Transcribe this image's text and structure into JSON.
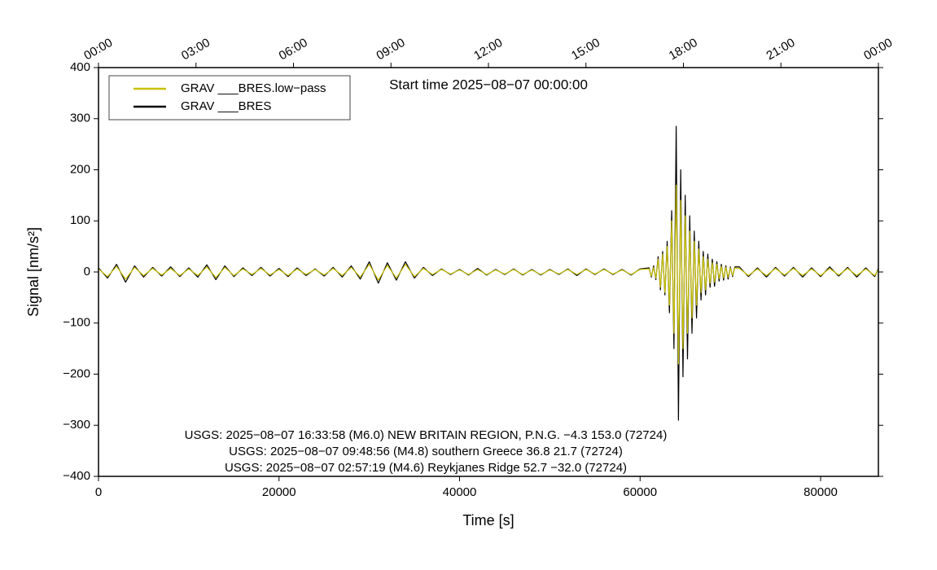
{
  "chart_data": {
    "type": "line",
    "title": "Start time 2025−08−07 00:00:00",
    "xlabel": "Time [s]",
    "ylabel": "Signal [nm/s²]",
    "xlim": [
      0,
      86400
    ],
    "ylim": [
      -400,
      400
    ],
    "xticks": [
      0,
      20000,
      40000,
      60000,
      80000
    ],
    "yticks": [
      {
        "value": -400,
        "label": "−400"
      },
      {
        "value": -300,
        "label": "−300"
      },
      {
        "value": -200,
        "label": "−200"
      },
      {
        "value": -100,
        "label": "−100"
      },
      0,
      100,
      200,
      300,
      400
    ],
    "x2ticks": [
      {
        "value": 0,
        "label": "00:00"
      },
      {
        "value": 10800,
        "label": "03:00"
      },
      {
        "value": 21600,
        "label": "06:00"
      },
      {
        "value": 32400,
        "label": "09:00"
      },
      {
        "value": 43200,
        "label": "12:00"
      },
      {
        "value": 54000,
        "label": "15:00"
      },
      {
        "value": 64800,
        "label": "18:00"
      },
      {
        "value": 75600,
        "label": "21:00"
      },
      {
        "value": 86400,
        "label": "00:00"
      }
    ],
    "legend": "upper left",
    "annotations": [
      "USGS: 2025−08−07 16:33:58 (M6.0) NEW BRITAIN REGION, P.N.G. −4.3 153.0 (72724)",
      "USGS: 2025−08−07 09:48:56 (M4.8) southern Greece 36.8 21.7 (72724)",
      "USGS: 2025−08−07 02:57:19 (M4.6) Reykjanes Ridge 52.7 −32.0 (72724)"
    ],
    "x": [
      0,
      1000,
      2000,
      3000,
      4000,
      5000,
      6000,
      7000,
      8000,
      9000,
      10000,
      11000,
      12000,
      13000,
      14000,
      15000,
      16000,
      17000,
      18000,
      19000,
      20000,
      21000,
      22000,
      23000,
      24000,
      25000,
      26000,
      27000,
      28000,
      29000,
      30000,
      31000,
      32000,
      33000,
      34000,
      35000,
      36000,
      37000,
      38000,
      39000,
      40000,
      41000,
      42000,
      43000,
      44000,
      45000,
      46000,
      47000,
      48000,
      49000,
      50000,
      51000,
      52000,
      53000,
      54000,
      55000,
      56000,
      57000,
      58000,
      59000,
      60000,
      61000,
      61250,
      61500,
      61750,
      62000,
      62250,
      62500,
      62750,
      63000,
      63250,
      63500,
      63750,
      64000,
      64250,
      64500,
      64750,
      65000,
      65250,
      65500,
      65750,
      66000,
      66250,
      66500,
      66750,
      67000,
      67250,
      67500,
      67750,
      68000,
      68250,
      68500,
      68750,
      69000,
      69250,
      69500,
      69750,
      70000,
      70250,
      70500,
      71000,
      72000,
      73000,
      74000,
      75000,
      76000,
      77000,
      78000,
      79000,
      80000,
      81000,
      82000,
      83000,
      84000,
      85000,
      86000,
      86400
    ],
    "series": [
      {
        "name": "GRAV ___BRES.low−pass",
        "color": "#c8c000",
        "values": [
          6,
          -9,
          11,
          -14,
          9,
          -7,
          7,
          -6,
          7,
          -7,
          6,
          -7,
          10,
          -11,
          9,
          -7,
          6,
          -5,
          7,
          -6,
          5,
          -7,
          6,
          -5,
          5,
          -6,
          7,
          -7,
          9,
          -10,
          15,
          -16,
          13,
          -12,
          15,
          -9,
          7,
          -5,
          5,
          -4,
          4,
          -5,
          5,
          -5,
          4,
          -4,
          5,
          -5,
          4,
          -5,
          4,
          -4,
          5,
          -5,
          5,
          -4,
          5,
          -4,
          4,
          -5,
          5,
          6,
          -8,
          9,
          -12,
          25,
          -30,
          35,
          -40,
          50,
          -65,
          100,
          -120,
          170,
          -180,
          140,
          -150,
          110,
          -120,
          80,
          -90,
          60,
          -65,
          45,
          -40,
          30,
          -35,
          25,
          -22,
          18,
          -20,
          15,
          -13,
          11,
          -12,
          9,
          -10,
          8,
          -7,
          8,
          7,
          -7,
          6,
          -7,
          7,
          -6,
          7,
          -7,
          6,
          -7,
          7,
          -6,
          7,
          -7,
          6,
          -7,
          5
        ]
      },
      {
        "name": "GRAV ___BRES",
        "color": "#000000",
        "values": [
          8,
          -12,
          15,
          -20,
          12,
          -10,
          9,
          -8,
          10,
          -9,
          8,
          -10,
          14,
          -15,
          12,
          -9,
          8,
          -7,
          9,
          -8,
          7,
          -9,
          8,
          -7,
          6,
          -8,
          9,
          -10,
          12,
          -14,
          20,
          -22,
          18,
          -16,
          20,
          -12,
          9,
          -7,
          6,
          -5,
          5,
          -6,
          7,
          -6,
          5,
          -5,
          6,
          -6,
          5,
          -6,
          5,
          -5,
          6,
          -7,
          6,
          -5,
          6,
          -5,
          5,
          -6,
          6,
          8,
          -10,
          12,
          -15,
          30,
          -35,
          40,
          -45,
          60,
          -80,
          120,
          -150,
          285,
          -290,
          200,
          -205,
          150,
          -170,
          110,
          -120,
          80,
          -90,
          60,
          -55,
          40,
          -45,
          35,
          -30,
          25,
          -28,
          20,
          -18,
          15,
          -16,
          12,
          -14,
          10,
          -9,
          10,
          10,
          -9,
          8,
          -10,
          9,
          -8,
          9,
          -10,
          8,
          -9,
          10,
          -8,
          9,
          -10,
          8,
          -9,
          7
        ]
      }
    ]
  }
}
